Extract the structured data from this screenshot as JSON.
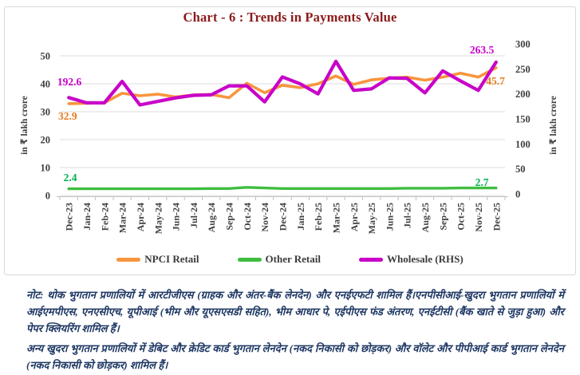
{
  "chart_data": {
    "type": "line",
    "title": "Chart - 6 : Trends in Payments Value",
    "title_color": "#8b1a1a",
    "grid": "horizontal",
    "legend_position": "bottom",
    "categories": [
      "Dec-23",
      "Jan-24",
      "Feb-24",
      "Mar-24",
      "Apr-24",
      "May-24",
      "Jun-24",
      "Jul-24",
      "Aug-24",
      "Sep-24",
      "Oct-24",
      "Nov-24",
      "Dec-24",
      "Jan-25",
      "Feb-25",
      "Mar-25",
      "Apr-25",
      "May-25",
      "Jun-25",
      "Jul-25",
      "Aug-25",
      "Sep-25",
      "Oct-25",
      "Nov-25",
      "Dec-25"
    ],
    "left_axis": {
      "title": "in ₹ lakh crore",
      "range": [
        0,
        50
      ],
      "ticks": [
        0,
        10,
        20,
        30,
        40,
        50
      ]
    },
    "right_axis": {
      "title": "in ₹ lakh crore",
      "range": [
        0,
        300
      ],
      "ticks": [
        0,
        50,
        100,
        150,
        200,
        250,
        300
      ]
    },
    "series": [
      {
        "name": "NPCI Retail",
        "axis": "left",
        "color": "#F7953E",
        "label_color": "#E87B1E",
        "first_label": "32.9",
        "last_label": "45.7",
        "width": 3.6,
        "values": [
          32.9,
          33.0,
          33.2,
          36.6,
          35.7,
          36.3,
          35.3,
          36.0,
          36.2,
          35.0,
          40.2,
          36.8,
          39.5,
          38.6,
          40.0,
          42.8,
          39.8,
          41.4,
          42.0,
          42.4,
          41.3,
          42.4,
          43.8,
          42.4,
          45.7
        ]
      },
      {
        "name": "Other Retail",
        "axis": "left",
        "color": "#3FBD3F",
        "label_color": "#00B050",
        "first_label": "2.4",
        "last_label": "2.7",
        "width": 3.4,
        "values": [
          2.4,
          2.4,
          2.4,
          2.4,
          2.4,
          2.4,
          2.4,
          2.4,
          2.5,
          2.5,
          2.9,
          2.7,
          2.5,
          2.5,
          2.5,
          2.5,
          2.5,
          2.5,
          2.5,
          2.6,
          2.6,
          2.6,
          2.7,
          2.7,
          2.7
        ]
      },
      {
        "name": "Wholesale (RHS)",
        "axis": "right",
        "color": "#C800C8",
        "label_color": "#C800C8",
        "first_label": "192.6",
        "last_label": "263.5",
        "width": 4.2,
        "values": [
          192.6,
          182,
          182,
          225,
          178,
          185,
          192,
          197,
          198,
          216,
          216,
          184,
          234,
          220,
          200,
          265,
          207,
          210,
          232,
          231,
          202,
          246,
          226,
          207,
          263.5
        ]
      }
    ]
  },
  "note": {
    "para1": "नोट: थोक भुगतान प्रणालियों में आरटीजीएस (ग्राहक और अंतर-बैंक लेनदेन) और एनईएफटी शामिल हैं।एनपीसीआई-खुदरा भुगतान प्रणालियों में आईएमपीएस, एनएसीएच, यूपीआई (भीम और यूएसएसडी सहित), भीम आधार पे, एईपीएस फंड अंतरण, एनईटीसी (बैंक खाते से जुड़ा हुआ) और पेपर क्लियरिंग शामिल हैं।",
    "para2": "अन्य खुदरा भुगतान प्रणालियों में डेबिट और क्रेडिट कार्ड भुगतान लेनदेन (नकद निकासी को छोड़कर) और वॉलेट और पीपीआई कार्ड भुगतान लेनदेन (नकद निकासी को छोड़कर) शामिल हैं।"
  }
}
